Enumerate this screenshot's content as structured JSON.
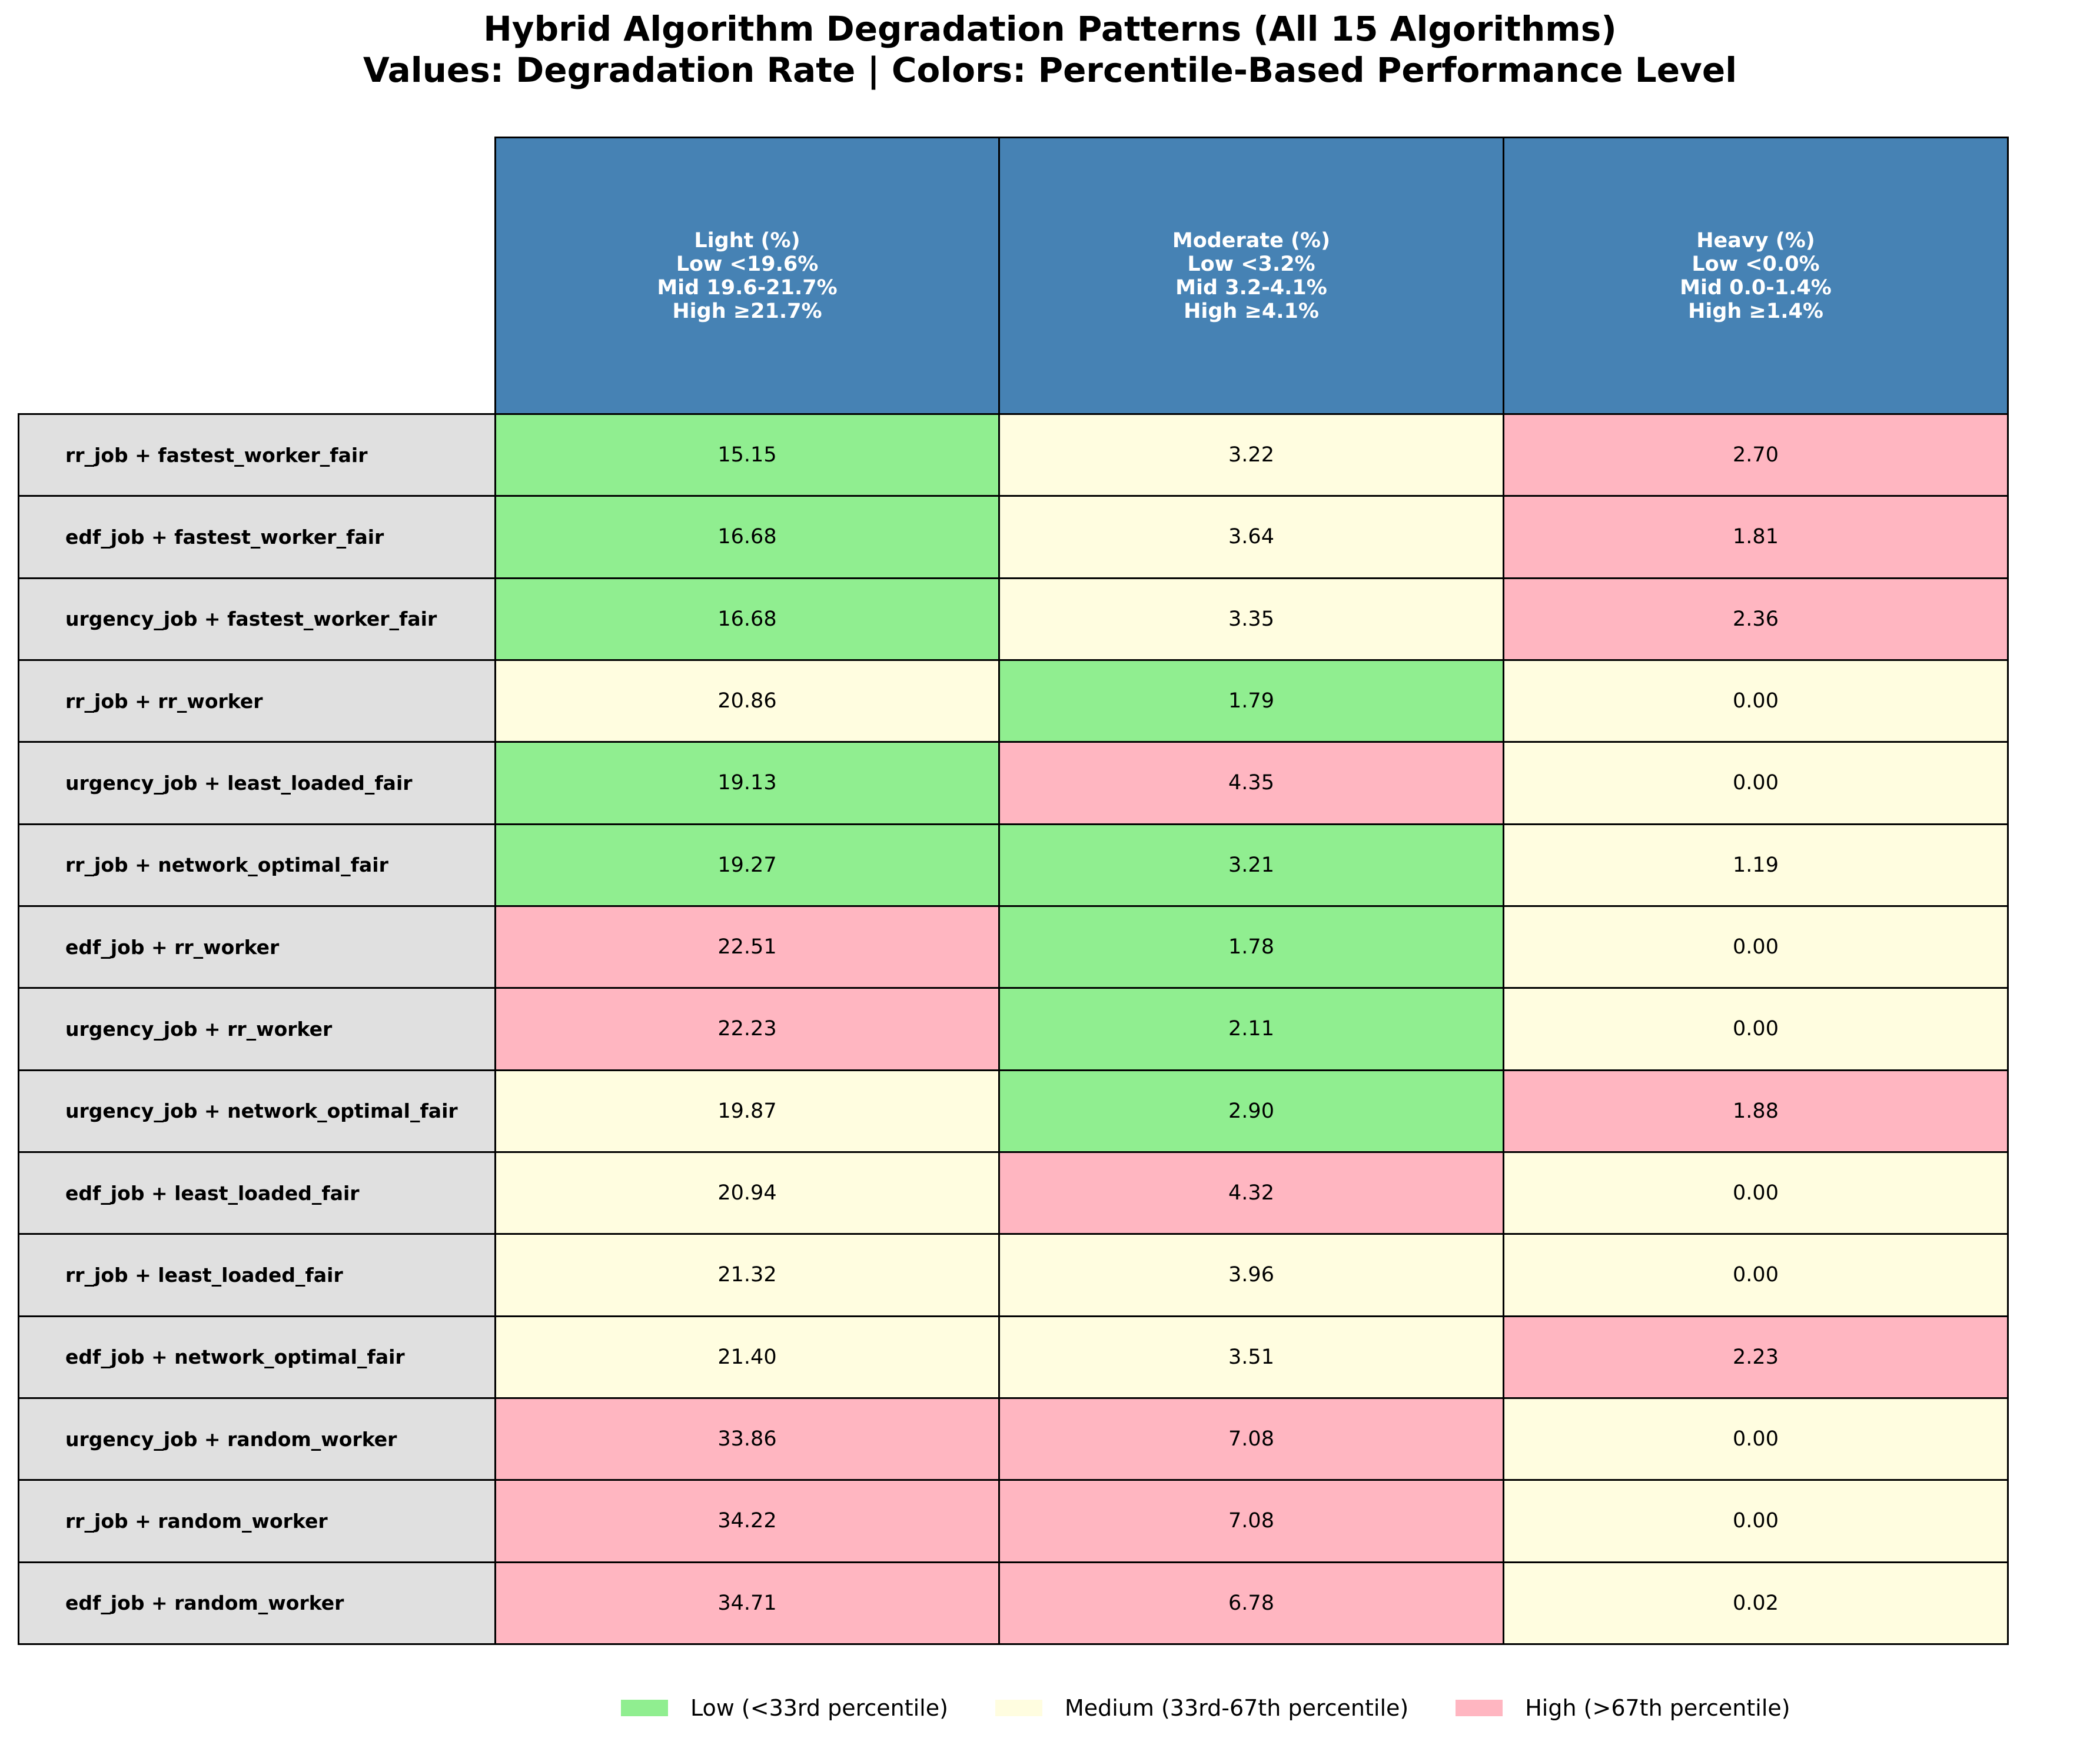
{
  "title": {
    "line1": "Hybrid Algorithm Degradation Patterns (All 15 Algorithms)",
    "line2": "Values: Degradation Rate | Colors: Percentile-Based Performance Level"
  },
  "colors": {
    "header_bg": "#4682b4",
    "row_label_bg": "#e0e0e0",
    "low": "#90ee90",
    "medium": "#fffde0",
    "high": "#ffb6c1"
  },
  "chart_data": {
    "type": "table",
    "columns": [
      {
        "name": "Light (%)",
        "thresholds": [
          "Low <19.6%",
          "Mid 19.6-21.7%",
          "High ≥21.7%"
        ]
      },
      {
        "name": "Moderate (%)",
        "thresholds": [
          "Low <3.2%",
          "Mid 3.2-4.1%",
          "High ≥4.1%"
        ]
      },
      {
        "name": "Heavy (%)",
        "thresholds": [
          "Low <0.0%",
          "Mid 0.0-1.4%",
          "High ≥1.4%"
        ]
      }
    ],
    "rows": [
      {
        "label": "rr_job + fastest_worker_fair",
        "values": [
          "15.15",
          "3.22",
          "2.70"
        ],
        "levels": [
          "low",
          "medium",
          "high"
        ]
      },
      {
        "label": "edf_job + fastest_worker_fair",
        "values": [
          "16.68",
          "3.64",
          "1.81"
        ],
        "levels": [
          "low",
          "medium",
          "high"
        ]
      },
      {
        "label": "urgency_job + fastest_worker_fair",
        "values": [
          "16.68",
          "3.35",
          "2.36"
        ],
        "levels": [
          "low",
          "medium",
          "high"
        ]
      },
      {
        "label": "rr_job + rr_worker",
        "values": [
          "20.86",
          "1.79",
          "0.00"
        ],
        "levels": [
          "medium",
          "low",
          "medium"
        ]
      },
      {
        "label": "urgency_job + least_loaded_fair",
        "values": [
          "19.13",
          "4.35",
          "0.00"
        ],
        "levels": [
          "low",
          "high",
          "medium"
        ]
      },
      {
        "label": "rr_job + network_optimal_fair",
        "values": [
          "19.27",
          "3.21",
          "1.19"
        ],
        "levels": [
          "low",
          "low",
          "medium"
        ]
      },
      {
        "label": "edf_job + rr_worker",
        "values": [
          "22.51",
          "1.78",
          "0.00"
        ],
        "levels": [
          "high",
          "low",
          "medium"
        ]
      },
      {
        "label": "urgency_job + rr_worker",
        "values": [
          "22.23",
          "2.11",
          "0.00"
        ],
        "levels": [
          "high",
          "low",
          "medium"
        ]
      },
      {
        "label": "urgency_job + network_optimal_fair",
        "values": [
          "19.87",
          "2.90",
          "1.88"
        ],
        "levels": [
          "medium",
          "low",
          "high"
        ]
      },
      {
        "label": "edf_job + least_loaded_fair",
        "values": [
          "20.94",
          "4.32",
          "0.00"
        ],
        "levels": [
          "medium",
          "high",
          "medium"
        ]
      },
      {
        "label": "rr_job + least_loaded_fair",
        "values": [
          "21.32",
          "3.96",
          "0.00"
        ],
        "levels": [
          "medium",
          "medium",
          "medium"
        ]
      },
      {
        "label": "edf_job + network_optimal_fair",
        "values": [
          "21.40",
          "3.51",
          "2.23"
        ],
        "levels": [
          "medium",
          "medium",
          "high"
        ]
      },
      {
        "label": "urgency_job + random_worker",
        "values": [
          "33.86",
          "7.08",
          "0.00"
        ],
        "levels": [
          "high",
          "high",
          "medium"
        ]
      },
      {
        "label": "rr_job + random_worker",
        "values": [
          "34.22",
          "7.08",
          "0.00"
        ],
        "levels": [
          "high",
          "high",
          "medium"
        ]
      },
      {
        "label": "edf_job + random_worker",
        "values": [
          "34.71",
          "6.78",
          "0.02"
        ],
        "levels": [
          "high",
          "high",
          "medium"
        ]
      }
    ]
  },
  "legend": [
    {
      "level": "low",
      "label": "Low (<33rd percentile)"
    },
    {
      "level": "medium",
      "label": "Medium (33rd-67th percentile)"
    },
    {
      "level": "high",
      "label": "High (>67th percentile)"
    }
  ]
}
